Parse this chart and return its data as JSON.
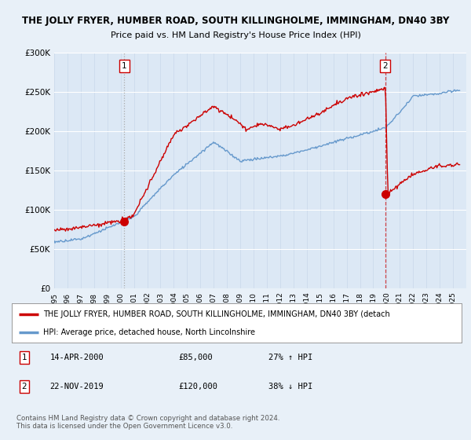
{
  "title": "THE JOLLY FRYER, HUMBER ROAD, SOUTH KILLINGHOLME, IMMINGHAM, DN40 3BY",
  "subtitle": "Price paid vs. HM Land Registry's House Price Index (HPI)",
  "legend_label_red": "THE JOLLY FRYER, HUMBER ROAD, SOUTH KILLINGHOLME, IMMINGHAM, DN40 3BY (detach",
  "legend_label_blue": "HPI: Average price, detached house, North Lincolnshire",
  "annotation1_date": "14-APR-2000",
  "annotation1_price": "£85,000",
  "annotation1_hpi": "27% ↑ HPI",
  "annotation2_date": "22-NOV-2019",
  "annotation2_price": "£120,000",
  "annotation2_hpi": "38% ↓ HPI",
  "footer": "Contains HM Land Registry data © Crown copyright and database right 2024.\nThis data is licensed under the Open Government Licence v3.0.",
  "ylim": [
    0,
    300000
  ],
  "yticks": [
    0,
    50000,
    100000,
    150000,
    200000,
    250000,
    300000
  ],
  "ytick_labels": [
    "£0",
    "£50K",
    "£100K",
    "£150K",
    "£200K",
    "£250K",
    "£300K"
  ],
  "background_color": "#e8f0f8",
  "plot_bg_color": "#dce8f5",
  "red_color": "#cc0000",
  "blue_color": "#6699cc",
  "marker1_x": 2000.28,
  "marker1_y": 85000,
  "marker2_x": 2019.9,
  "marker2_y": 120000,
  "xmin": 1995,
  "xmax": 2026
}
